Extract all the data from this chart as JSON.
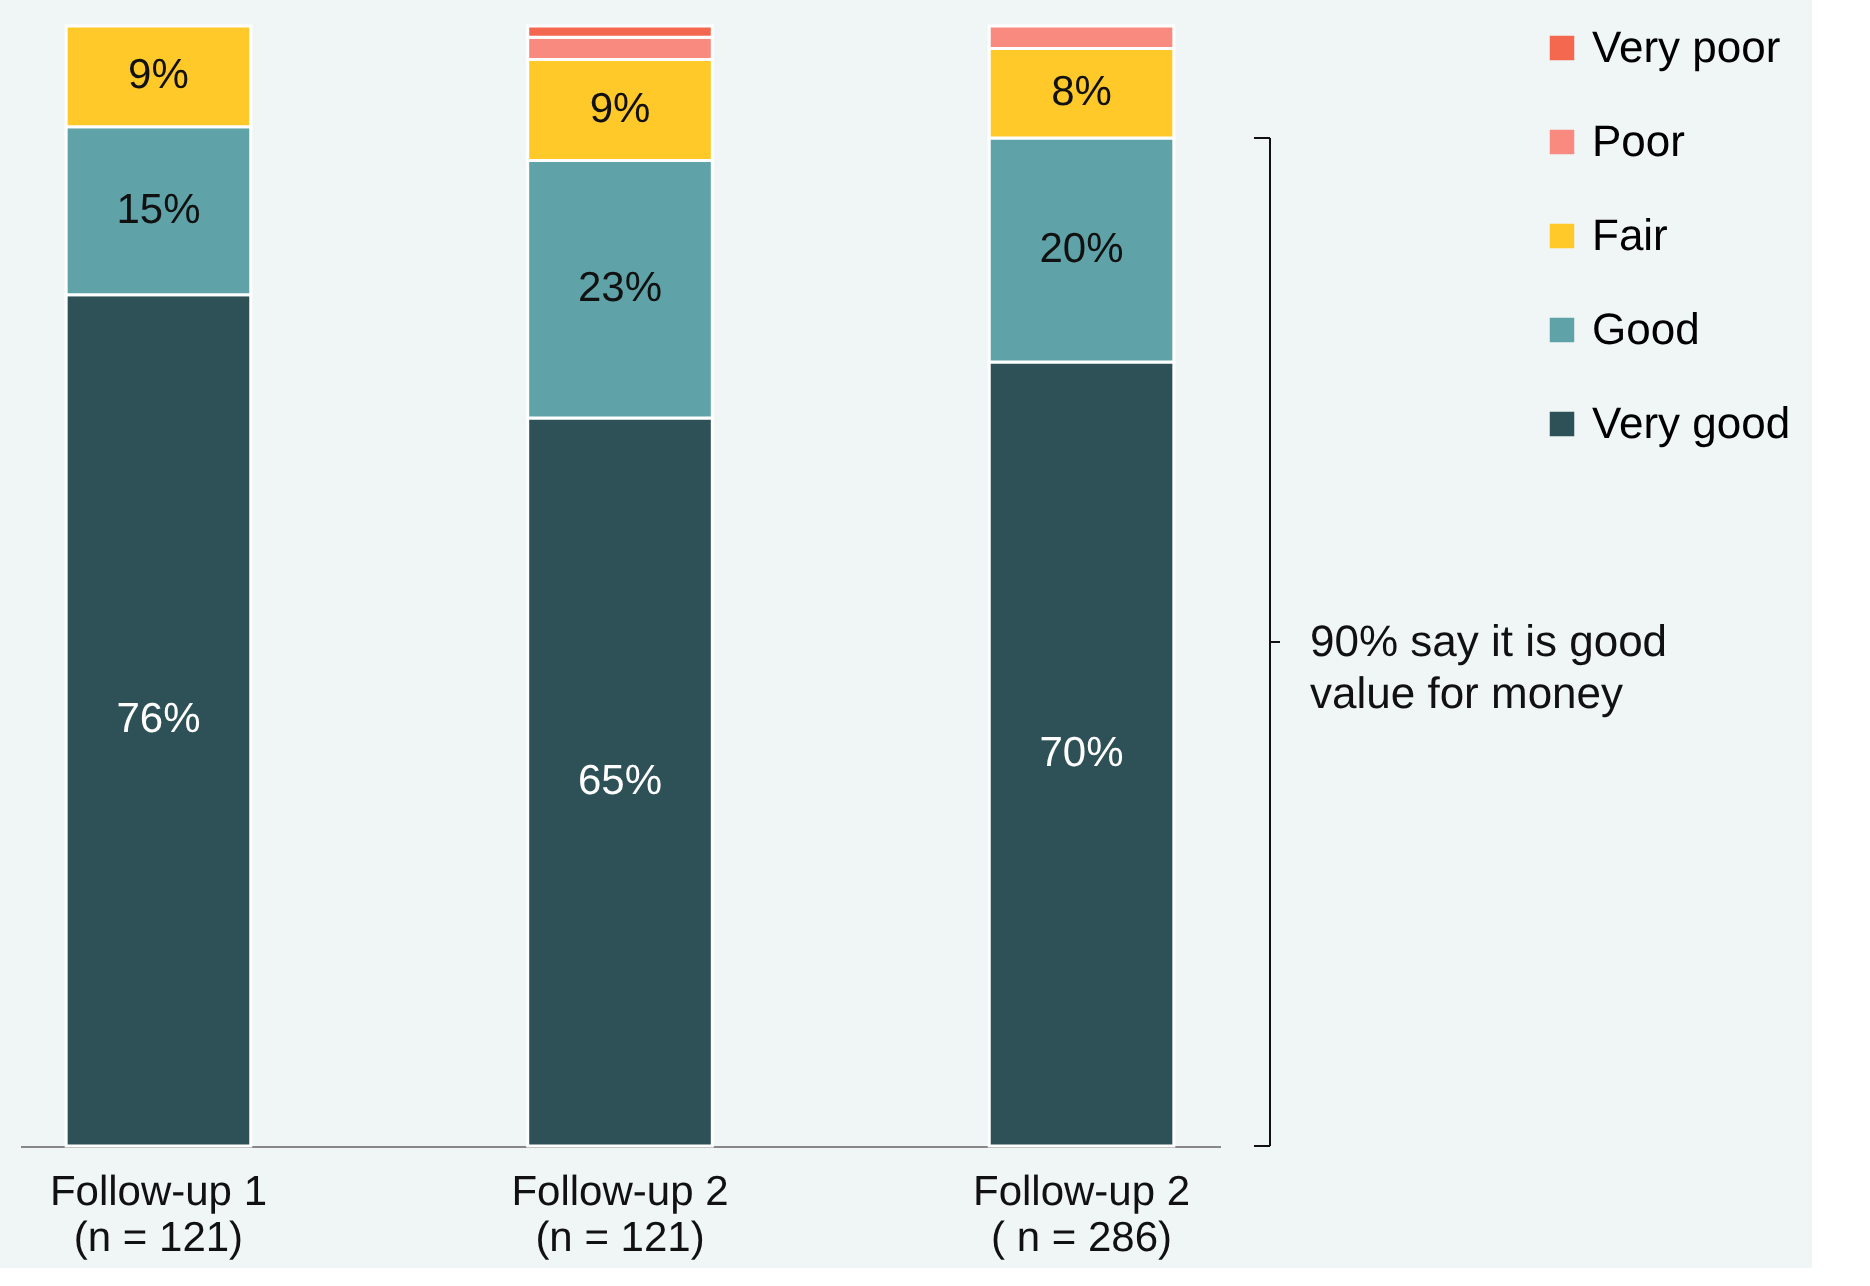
{
  "chart_data": {
    "type": "bar",
    "stacked": true,
    "categories": [
      "Follow-up 1\n(n = 121)",
      "Follow-up 2\n(n = 121)",
      "Follow-up 2\n( n = 286)"
    ],
    "series": [
      {
        "name": "Very good",
        "color": "#2e5157",
        "values": [
          76,
          65,
          70
        ],
        "value_labels": [
          "76%",
          "65%",
          "70%"
        ]
      },
      {
        "name": "Good",
        "color": "#5fa3a8",
        "values": [
          15,
          23,
          20
        ],
        "value_labels": [
          "15%",
          "23%",
          "20%"
        ]
      },
      {
        "name": "Fair",
        "color": "#ffc929",
        "values": [
          9,
          9,
          8
        ],
        "value_labels": [
          "9%",
          "9%",
          "8%"
        ]
      },
      {
        "name": "Poor",
        "color": "#f98a7f",
        "values": [
          0,
          2,
          2
        ],
        "value_labels": [
          null,
          null,
          null
        ]
      },
      {
        "name": "Very poor",
        "color": "#f4684f",
        "values": [
          0,
          1,
          0
        ],
        "value_labels": [
          null,
          null,
          null
        ]
      }
    ],
    "annotations": [
      "90% say it is good value for money"
    ],
    "legend": "top right"
  }
}
